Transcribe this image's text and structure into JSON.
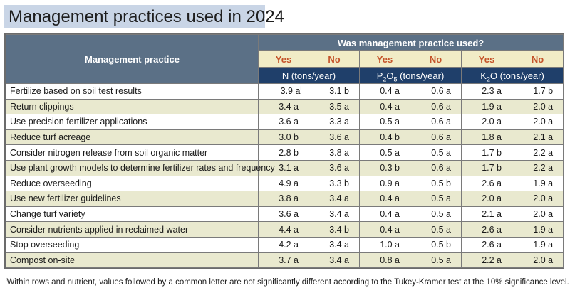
{
  "title": "Management practices used in 2024",
  "header": {
    "practice_col": "Management practice",
    "group_label": "Was management practice used?",
    "yes": "Yes",
    "no": "No",
    "units": {
      "n": "N (tons/year)",
      "p_pre": "P",
      "p_sub1": "2",
      "p_mid": "O",
      "p_sub2": "5",
      "p_post": " (tons/year)",
      "k_pre": "K",
      "k_sub": "2",
      "k_post": "O (tons/year)"
    }
  },
  "rows": [
    {
      "practice": "Fertilize based on soil test results",
      "n_yes": "3.9 a",
      "n_yes_note": "i",
      "n_no": "3.1 b",
      "p_yes": "0.4 a",
      "p_no": "0.6 a",
      "k_yes": "2.3 a",
      "k_no": "1.7 b"
    },
    {
      "practice": "Return clippings",
      "n_yes": "3.4 a",
      "n_yes_note": "",
      "n_no": "3.5 a",
      "p_yes": "0.4 a",
      "p_no": "0.6 a",
      "k_yes": "1.9 a",
      "k_no": "2.0 a"
    },
    {
      "practice": "Use precision fertilizer applications",
      "n_yes": "3.6 a",
      "n_yes_note": "",
      "n_no": "3.3 a",
      "p_yes": "0.5 a",
      "p_no": "0.6 a",
      "k_yes": "2.0 a",
      "k_no": "2.0 a"
    },
    {
      "practice": "Reduce turf acreage",
      "n_yes": "3.0 b",
      "n_yes_note": "",
      "n_no": "3.6 a",
      "p_yes": "0.4 b",
      "p_no": "0.6 a",
      "k_yes": "1.8 a",
      "k_no": "2.1 a"
    },
    {
      "practice": "Consider nitrogen release from soil organic matter",
      "n_yes": "2.8 b",
      "n_yes_note": "",
      "n_no": "3.8 a",
      "p_yes": "0.5 a",
      "p_no": "0.5 a",
      "k_yes": "1.7 b",
      "k_no": "2.2 a"
    },
    {
      "practice": "Use plant growth models to determine fertilizer rates and frequency",
      "n_yes": "3.1 a",
      "n_yes_note": "",
      "n_no": "3.6 a",
      "p_yes": "0.3 b",
      "p_no": "0.6 a",
      "k_yes": "1.7 b",
      "k_no": "2.2 a"
    },
    {
      "practice": "Reduce overseeding",
      "n_yes": "4.9 a",
      "n_yes_note": "",
      "n_no": "3.3 b",
      "p_yes": "0.9 a",
      "p_no": "0.5 b",
      "k_yes": "2.6 a",
      "k_no": "1.9 a"
    },
    {
      "practice": "Use new fertilizer guidelines",
      "n_yes": "3.8 a",
      "n_yes_note": "",
      "n_no": "3.4 a",
      "p_yes": "0.4 a",
      "p_no": "0.5 a",
      "k_yes": "2.0 a",
      "k_no": "2.0 a"
    },
    {
      "practice": "Change turf variety",
      "n_yes": "3.6 a",
      "n_yes_note": "",
      "n_no": "3.4 a",
      "p_yes": "0.4 a",
      "p_no": "0.5 a",
      "k_yes": "2.1 a",
      "k_no": "2.0 a"
    },
    {
      "practice": "Consider nutrients applied in reclaimed water",
      "n_yes": "4.4 a",
      "n_yes_note": "",
      "n_no": "3.4 b",
      "p_yes": "0.4 a",
      "p_no": "0.5 a",
      "k_yes": "2.6 a",
      "k_no": "1.9 a"
    },
    {
      "practice": "Stop overseeding",
      "n_yes": "4.2 a",
      "n_yes_note": "",
      "n_no": "3.4 a",
      "p_yes": "1.0 a",
      "p_no": "0.5 b",
      "k_yes": "2.6 a",
      "k_no": "1.9 a"
    },
    {
      "practice": "Compost on-site",
      "n_yes": "3.7 a",
      "n_yes_note": "",
      "n_no": "3.4 a",
      "p_yes": "0.8 a",
      "p_no": "0.5 a",
      "k_yes": "2.2 a",
      "k_no": "2.0 a"
    }
  ],
  "footnote": {
    "marker": "i",
    "text": "Within rows and nutrient, values followed by a common letter are not significantly different according to the Tukey-Kramer test at the 10% significance level."
  }
}
